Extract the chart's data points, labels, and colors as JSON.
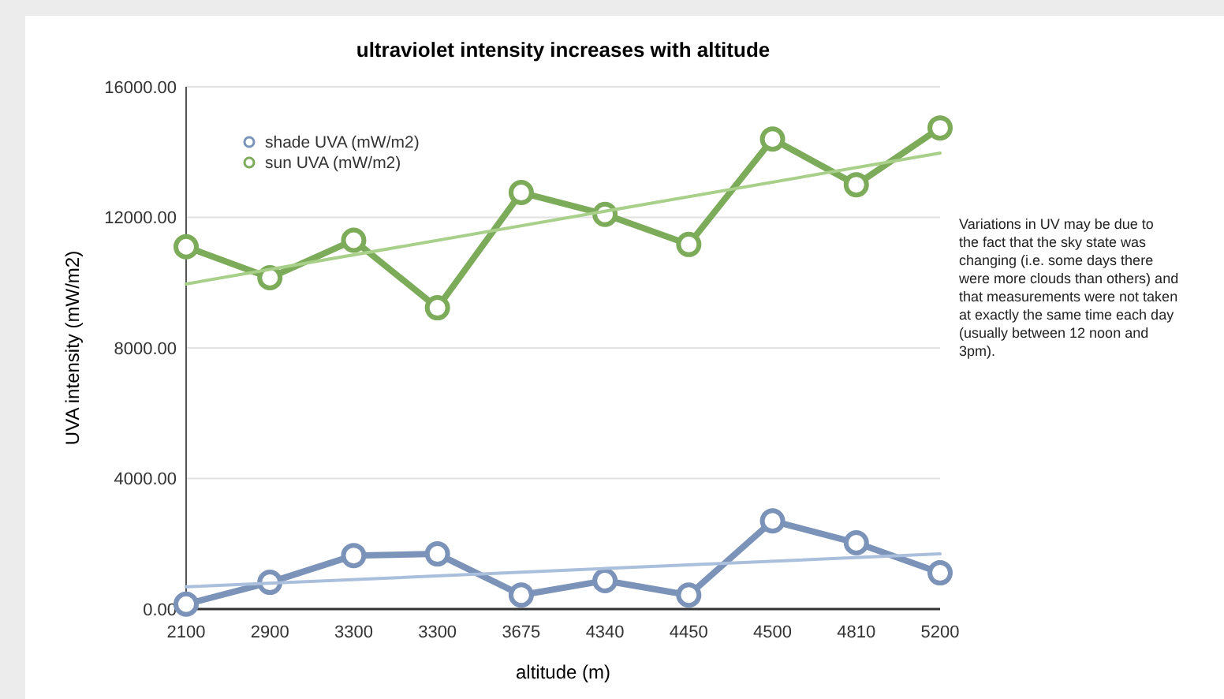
{
  "chart_data": {
    "type": "line",
    "title": "ultraviolet intensity increases with altitude",
    "xlabel": "altitude (m)",
    "ylabel": "UVA intensity (mW/m2)",
    "categories": [
      "2100",
      "2900",
      "3300",
      "3300",
      "3675",
      "4340",
      "4450",
      "4500",
      "4810",
      "5200"
    ],
    "series": [
      {
        "name": "shade UVA (mW/m2)",
        "color": "#7b93b8",
        "values": [
          150,
          820,
          1640,
          1690,
          430,
          870,
          430,
          2700,
          2030,
          1110
        ]
      },
      {
        "name": "sun UVA (mW/m2)",
        "color": "#7cab5a",
        "values": [
          11100,
          10150,
          11300,
          9230,
          12760,
          12090,
          11170,
          14400,
          13000,
          14740
        ]
      },
      {
        "type": "line",
        "color": "#a9bfdc",
        "values": [
          680,
          null,
          null,
          null,
          null,
          null,
          null,
          null,
          null,
          1690
        ],
        "marker": "none"
      },
      {
        "type": "line",
        "color": "#a8d08a",
        "values": [
          9960,
          null,
          null,
          null,
          null,
          null,
          null,
          null,
          null,
          13970
        ],
        "marker": "none"
      }
    ],
    "ylim": [
      0,
      16000
    ],
    "yticks": [
      {
        "value": 0,
        "label": "0.00"
      },
      {
        "value": 4000,
        "label": "4000.00"
      },
      {
        "value": 8000,
        "label": "8000.00"
      },
      {
        "value": 12000,
        "label": "12000.00"
      },
      {
        "value": 16000,
        "label": "16000.00"
      }
    ],
    "grid": "y",
    "legend": "top left",
    "marker": "circle",
    "annotations": [
      "Variations in UV may be due to the fact that the sky state was changing (i.e. some days there were more clouds than others) and that measurements were not taken at exactly the same time each day (usually between 12 noon and 3pm)."
    ]
  }
}
